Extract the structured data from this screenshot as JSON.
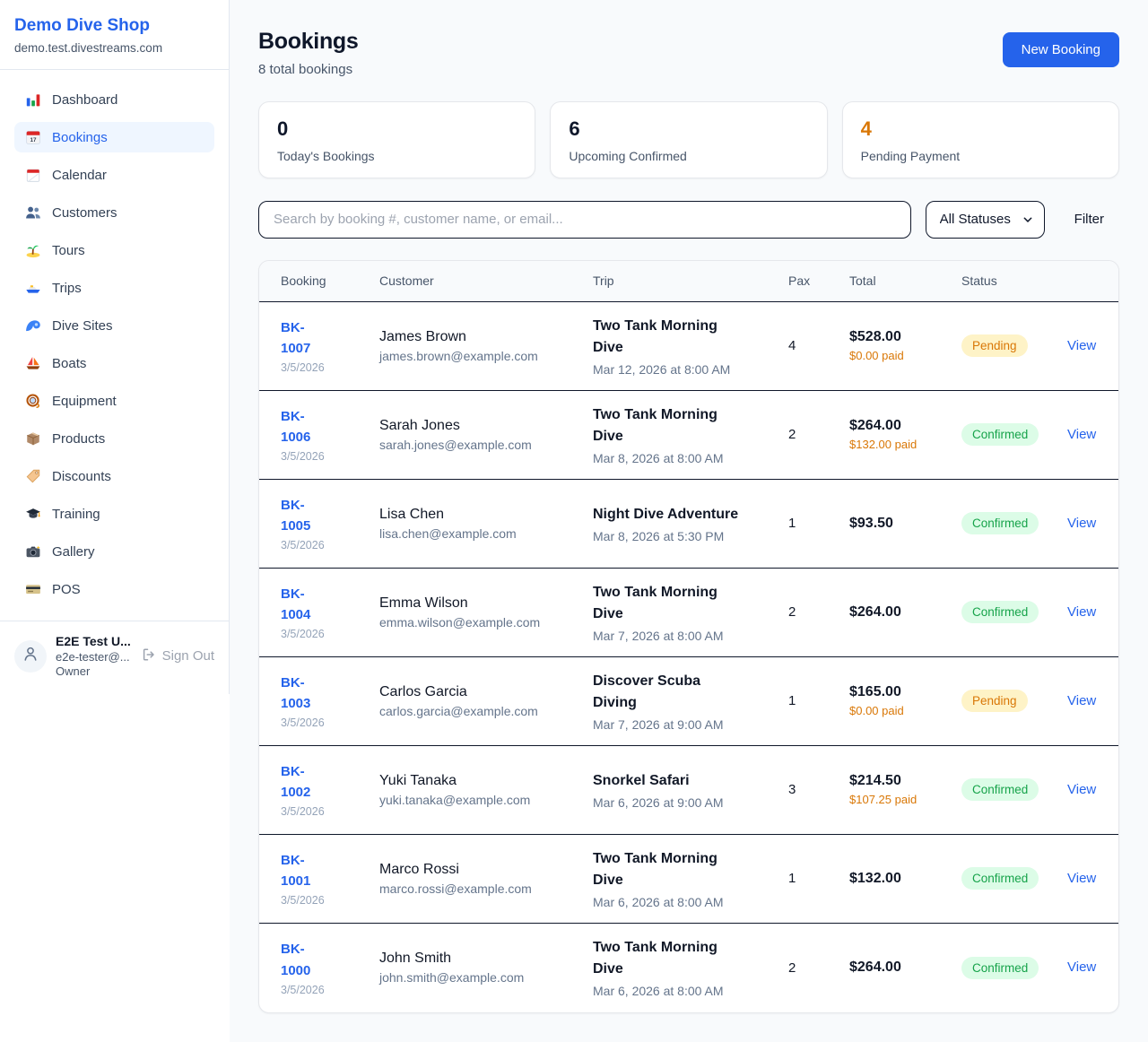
{
  "colors": {
    "brand_blue": "#2563eb",
    "pending_text": "#d97706",
    "pending_bg": "#fef3c7",
    "confirmed_text": "#16a34a",
    "confirmed_bg": "#dcfce7",
    "page_bg": "#f8fafc"
  },
  "sidebar": {
    "shop_name": "Demo Dive Shop",
    "domain": "demo.test.divestreams.com",
    "items": [
      {
        "label": "Dashboard",
        "icon": "bar-chart-icon",
        "active": false
      },
      {
        "label": "Bookings",
        "icon": "bookings-calendar-icon",
        "active": true
      },
      {
        "label": "Calendar",
        "icon": "calendar-icon",
        "active": false
      },
      {
        "label": "Customers",
        "icon": "customers-icon",
        "active": false
      },
      {
        "label": "Tours",
        "icon": "island-icon",
        "active": false
      },
      {
        "label": "Trips",
        "icon": "motorboat-icon",
        "active": false
      },
      {
        "label": "Dive Sites",
        "icon": "wave-icon",
        "active": false
      },
      {
        "label": "Boats",
        "icon": "sailboat-icon",
        "active": false
      },
      {
        "label": "Equipment",
        "icon": "dive-mask-icon",
        "active": false
      },
      {
        "label": "Products",
        "icon": "package-icon",
        "active": false
      },
      {
        "label": "Discounts",
        "icon": "label-tag-icon",
        "active": false
      },
      {
        "label": "Training",
        "icon": "graduation-cap-icon",
        "active": false
      },
      {
        "label": "Gallery",
        "icon": "camera-icon",
        "active": false
      },
      {
        "label": "POS",
        "icon": "credit-card-icon",
        "active": false
      }
    ],
    "user": {
      "name": "E2E Test U...",
      "email": "e2e-tester@...",
      "role": "Owner",
      "sign_out_label": "Sign Out"
    }
  },
  "header": {
    "title": "Bookings",
    "subtitle": "8 total bookings",
    "new_booking_label": "New Booking"
  },
  "stats": [
    {
      "value": "0",
      "label": "Today's Bookings",
      "accent": ""
    },
    {
      "value": "6",
      "label": "Upcoming Confirmed",
      "accent": ""
    },
    {
      "value": "4",
      "label": "Pending Payment",
      "accent": "orange"
    }
  ],
  "filters": {
    "search_placeholder": "Search by booking #, customer name, or email...",
    "status_selected": "All Statuses",
    "filter_label": "Filter"
  },
  "table": {
    "columns": [
      "Booking",
      "Customer",
      "Trip",
      "Pax",
      "Total",
      "Status"
    ],
    "view_label": "View",
    "rows": [
      {
        "booking_number": "BK-1007",
        "booking_date": "3/5/2026",
        "customer_name": "James Brown",
        "customer_email": "james.brown@example.com",
        "trip_name": "Two Tank Morning Dive",
        "trip_datetime": "Mar 12, 2026 at 8:00 AM",
        "pax": "4",
        "total": "$528.00",
        "paid": "$0.00 paid",
        "status": "Pending"
      },
      {
        "booking_number": "BK-1006",
        "booking_date": "3/5/2026",
        "customer_name": "Sarah Jones",
        "customer_email": "sarah.jones@example.com",
        "trip_name": "Two Tank Morning Dive",
        "trip_datetime": "Mar 8, 2026 at 8:00 AM",
        "pax": "2",
        "total": "$264.00",
        "paid": "$132.00 paid",
        "status": "Confirmed"
      },
      {
        "booking_number": "BK-1005",
        "booking_date": "3/5/2026",
        "customer_name": "Lisa Chen",
        "customer_email": "lisa.chen@example.com",
        "trip_name": "Night Dive Adventure",
        "trip_datetime": "Mar 8, 2026 at 5:30 PM",
        "pax": "1",
        "total": "$93.50",
        "paid": "",
        "status": "Confirmed"
      },
      {
        "booking_number": "BK-1004",
        "booking_date": "3/5/2026",
        "customer_name": "Emma Wilson",
        "customer_email": "emma.wilson@example.com",
        "trip_name": "Two Tank Morning Dive",
        "trip_datetime": "Mar 7, 2026 at 8:00 AM",
        "pax": "2",
        "total": "$264.00",
        "paid": "",
        "status": "Confirmed"
      },
      {
        "booking_number": "BK-1003",
        "booking_date": "3/5/2026",
        "customer_name": "Carlos Garcia",
        "customer_email": "carlos.garcia@example.com",
        "trip_name": "Discover Scuba Diving",
        "trip_datetime": "Mar 7, 2026 at 9:00 AM",
        "pax": "1",
        "total": "$165.00",
        "paid": "$0.00 paid",
        "status": "Pending"
      },
      {
        "booking_number": "BK-1002",
        "booking_date": "3/5/2026",
        "customer_name": "Yuki Tanaka",
        "customer_email": "yuki.tanaka@example.com",
        "trip_name": "Snorkel Safari",
        "trip_datetime": "Mar 6, 2026 at 9:00 AM",
        "pax": "3",
        "total": "$214.50",
        "paid": "$107.25 paid",
        "status": "Confirmed"
      },
      {
        "booking_number": "BK-1001",
        "booking_date": "3/5/2026",
        "customer_name": "Marco Rossi",
        "customer_email": "marco.rossi@example.com",
        "trip_name": "Two Tank Morning Dive",
        "trip_datetime": "Mar 6, 2026 at 8:00 AM",
        "pax": "1",
        "total": "$132.00",
        "paid": "",
        "status": "Confirmed"
      },
      {
        "booking_number": "BK-1000",
        "booking_date": "3/5/2026",
        "customer_name": "John Smith",
        "customer_email": "john.smith@example.com",
        "trip_name": "Two Tank Morning Dive",
        "trip_datetime": "Mar 6, 2026 at 8:00 AM",
        "pax": "2",
        "total": "$264.00",
        "paid": "",
        "status": "Confirmed"
      }
    ]
  }
}
